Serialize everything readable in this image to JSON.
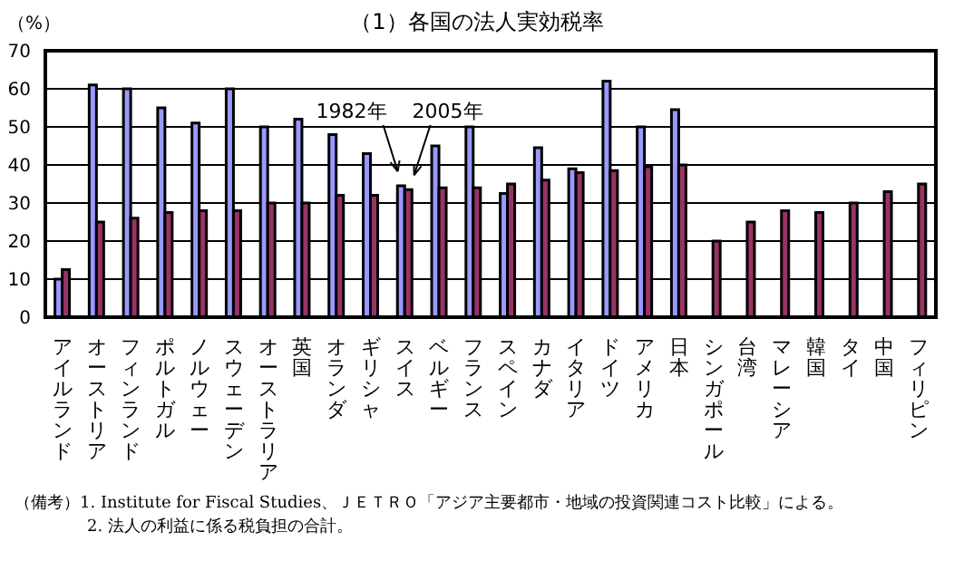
{
  "chart_data": {
    "type": "bar",
    "title": "（1）各国の法人実効税率",
    "ylabel": "（%）",
    "categories": [
      "アイルランド",
      "オーストリア",
      "フィンランド",
      "ポルトガル",
      "ノルウェー",
      "スウェーデン",
      "オーストラリア",
      "英国",
      "オランダ",
      "ギリシャ",
      "スイス",
      "ベルギー",
      "フランス",
      "スペイン",
      "カナダ",
      "イタリア",
      "ドイツ",
      "アメリカ",
      "日本",
      "シンガポール",
      "台湾",
      "マレーシア",
      "韓国",
      "タイ",
      "中国",
      "フィリピン"
    ],
    "series": [
      {
        "name": "1982年",
        "color": "#9999ff",
        "values": [
          10,
          61,
          60,
          55,
          51,
          60,
          50,
          52,
          48,
          43,
          34.5,
          45,
          50,
          32.5,
          44.5,
          39,
          62,
          50,
          54.5,
          null,
          null,
          null,
          null,
          null,
          null,
          null
        ]
      },
      {
        "name": "2005年",
        "color": "#993366",
        "values": [
          12.5,
          25,
          26,
          27.5,
          28,
          28,
          30,
          30,
          32,
          32,
          33.5,
          34,
          34,
          35,
          36,
          38,
          38.5,
          39.5,
          40,
          20,
          25,
          28,
          27.5,
          30,
          33,
          35
        ]
      }
    ],
    "ylim": [
      0,
      70
    ],
    "yticks": [
      0,
      10,
      20,
      30,
      40,
      50,
      60,
      70
    ],
    "grid": "y",
    "legend": false,
    "annotations": [
      "（備考）1. Institute for Fiscal Studies、ＪＥＴＲＯ「アジア主要都市・地域の投資関連コスト比較」による。",
      "2. 法人の利益に係る税負担の合計。"
    ]
  }
}
